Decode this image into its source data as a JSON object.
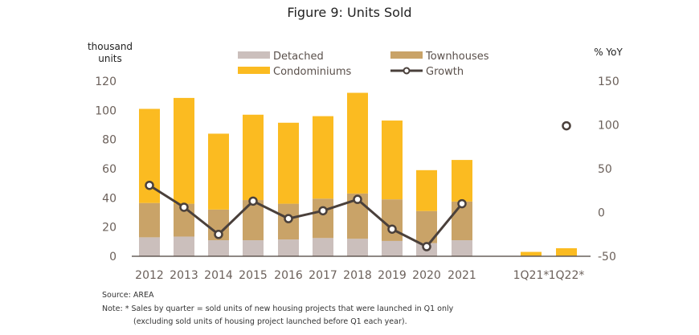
{
  "chart_data": {
    "type": "bar",
    "title": "Figure 9: Units Sold",
    "ylabel_left": "thousand units",
    "ylabel_right": "% YoY",
    "ylim_left": [
      0,
      120
    ],
    "ylim_right": [
      -50,
      150
    ],
    "yticks_left": [
      "0",
      "20",
      "40",
      "60",
      "80",
      "100",
      "120"
    ],
    "yticks_right": [
      "-50",
      "0",
      "50",
      "100",
      "150"
    ],
    "categories": [
      "2012",
      "2013",
      "2014",
      "2015",
      "2016",
      "2017",
      "2018",
      "2019",
      "2020",
      "2021",
      "1Q21*",
      "1Q22*"
    ],
    "stacked": true,
    "grid": false,
    "legend_position": "top-center",
    "series": [
      {
        "name": "Detached",
        "type": "bar",
        "color": "#cbbfbc",
        "values": [
          13,
          13.5,
          11,
          11,
          11.5,
          12.5,
          12,
          10.5,
          9,
          11,
          0,
          0
        ]
      },
      {
        "name": "Townhouses",
        "type": "bar",
        "color": "#c9a368",
        "values": [
          23.5,
          22.5,
          21,
          27.5,
          24.5,
          27,
          31,
          28.5,
          22,
          26.5,
          0.5,
          0.5
        ]
      },
      {
        "name": "Condominiums",
        "type": "bar",
        "color": "#fbbb21",
        "values": [
          64.5,
          72.5,
          52,
          58.5,
          55.5,
          56.5,
          69,
          54,
          28,
          28.5,
          2.5,
          5
        ]
      },
      {
        "name": "Growth",
        "type": "line",
        "axis": "right",
        "color": "#4a403b",
        "values": [
          31,
          6,
          -25,
          13,
          -7,
          2,
          15,
          -19,
          -39,
          10,
          null,
          99
        ]
      }
    ]
  },
  "footer": {
    "source": "Source: AREA",
    "note_line1": "Note:  * Sales by quarter = sold units of new housing projects that were launched in Q1 only",
    "note_line2": "(excluding sold units of housing project launched before Q1 each year)."
  }
}
